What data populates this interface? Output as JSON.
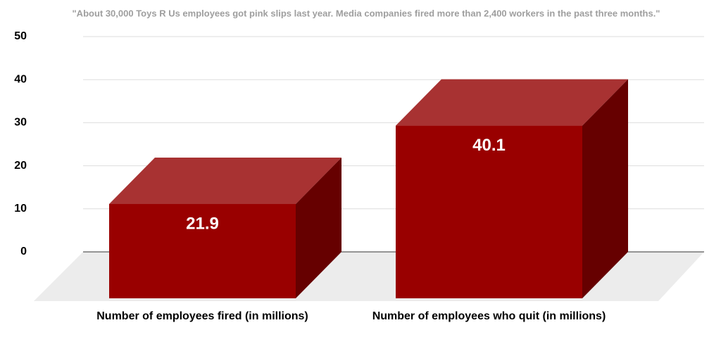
{
  "chart_data": {
    "type": "bar3d",
    "title": "\"About 30,000 Toys R Us employees got pink slips last year. Media companies fired more than 2,400 workers in the past three months.\"",
    "categories": [
      "Number of employees fired (in millions)",
      "Number of employees who quit (in millions)"
    ],
    "values": [
      21.9,
      40.1
    ],
    "colors": {
      "front": "#990000",
      "top": "#a83232",
      "side": "#660000"
    },
    "ylim": [
      0,
      50
    ],
    "yticks": [
      0,
      10,
      20,
      30,
      40,
      50
    ],
    "grid": true
  }
}
